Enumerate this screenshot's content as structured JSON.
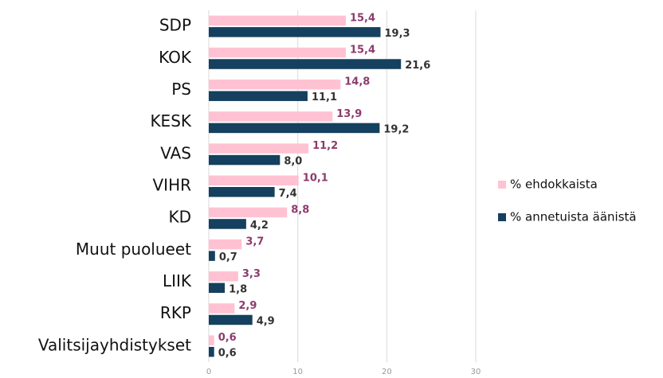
{
  "chart_data": {
    "type": "bar",
    "orientation": "horizontal",
    "categories": [
      "SDP",
      "KOK",
      "PS",
      "KESK",
      "VAS",
      "VIHR",
      "KD",
      "Muut puolueet",
      "LIIK",
      "RKP",
      "Valitsijayhdistykset"
    ],
    "series": [
      {
        "name": "% ehdokkaista",
        "color": "#ffc2d3",
        "label_color": "#8e3a6e",
        "values": [
          15.4,
          15.4,
          14.8,
          13.9,
          11.2,
          10.1,
          8.8,
          3.7,
          3.3,
          2.9,
          0.6
        ],
        "value_labels": [
          "15,4",
          "15,4",
          "14,8",
          "13,9",
          "11,2",
          "10,1",
          "8,8",
          "3,7",
          "3,3",
          "2,9",
          "0,6"
        ]
      },
      {
        "name": "% annetuista äänistä",
        "color": "#15405f",
        "label_color": "#333333",
        "values": [
          19.3,
          21.6,
          11.1,
          19.2,
          8.0,
          7.4,
          4.2,
          0.7,
          1.8,
          4.9,
          0.6
        ],
        "value_labels": [
          "19,3",
          "21,6",
          "11,1",
          "19,2",
          "8,0",
          "7,4",
          "4,2",
          "0,7",
          "1,8",
          "4,9",
          "0,6"
        ]
      }
    ],
    "xlim": [
      0,
      30
    ],
    "xticks": [
      0,
      10,
      20,
      30
    ],
    "grid": true,
    "legend": "right"
  }
}
